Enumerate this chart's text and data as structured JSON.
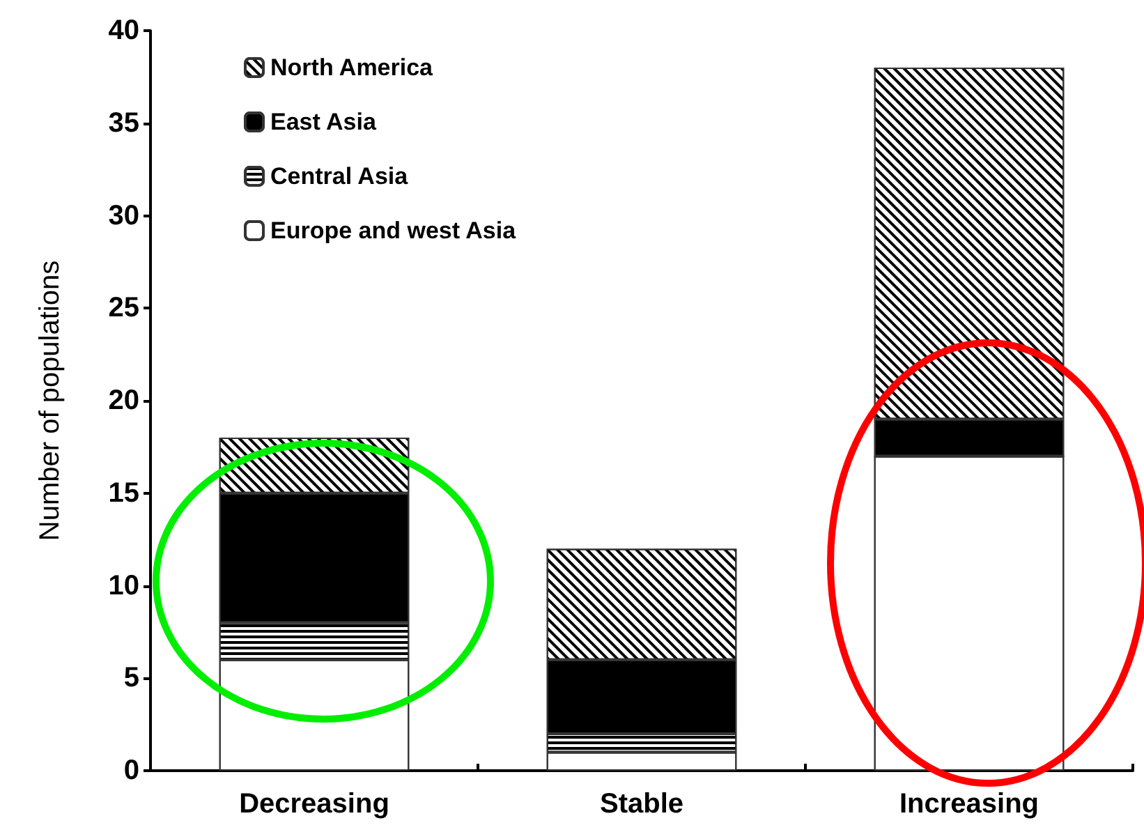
{
  "chart_data": {
    "type": "bar",
    "stacked": true,
    "ylabel": "Number of populations",
    "categories": [
      "Decreasing",
      "Stable",
      "Increasing"
    ],
    "series": [
      {
        "name": "Europe and west Asia",
        "color": "#ffffff",
        "values": [
          6,
          1,
          17
        ]
      },
      {
        "name": "Central Asia",
        "color": "#ffffff",
        "values": [
          2,
          1,
          0
        ]
      },
      {
        "name": "East Asia",
        "color": "#000000",
        "values": [
          7,
          4,
          2
        ]
      },
      {
        "name": "North America",
        "color": "#ffffff",
        "values": [
          3,
          6,
          19
        ]
      }
    ],
    "ylim": [
      0,
      40
    ],
    "yticks": [
      0,
      5,
      10,
      15,
      20,
      25,
      30,
      35,
      40
    ],
    "grid": false,
    "legend": "top left"
  }
}
